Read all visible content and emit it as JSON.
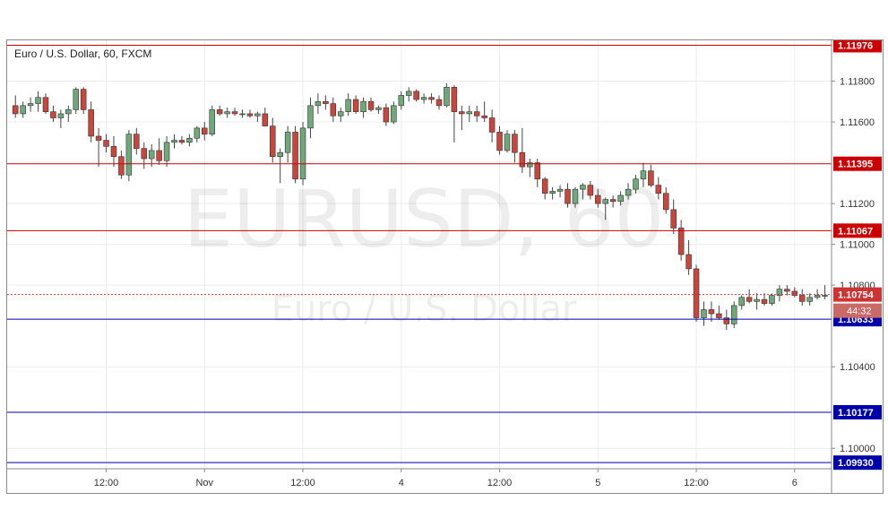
{
  "chart_data": {
    "type": "candlestick",
    "title": "Euro / U.S. Dollar, 60, FXCM",
    "watermark_symbol": "EURUSD, 60",
    "watermark_name": "Euro / U.S. Dollar",
    "ylim": [
      1.099,
      1.12
    ],
    "y_ticks": [
      "1.11800",
      "1.11600",
      "1.11200",
      "1.11000",
      "1.10800",
      "1.10400",
      "1.10000"
    ],
    "y_tick_values": [
      1.118,
      1.116,
      1.112,
      1.11,
      1.108,
      1.104,
      1.1
    ],
    "x_labels": [
      {
        "label": "12:00",
        "bar": 12
      },
      {
        "label": "Nov",
        "bar": 25
      },
      {
        "label": "12:00",
        "bar": 38
      },
      {
        "label": "4",
        "bar": 51
      },
      {
        "label": "12:00",
        "bar": 64
      },
      {
        "label": "5",
        "bar": 77
      },
      {
        "label": "12:00",
        "bar": 90
      },
      {
        "label": "6",
        "bar": 103
      }
    ],
    "levels": [
      {
        "value": 1.11976,
        "label": "1.11976",
        "color": "#cc0000"
      },
      {
        "value": 1.11395,
        "label": "1.11395",
        "color": "#cc0000"
      },
      {
        "value": 1.11067,
        "label": "1.11067",
        "color": "#cc0000"
      },
      {
        "value": 1.10633,
        "label": "1.10633",
        "color": "#0000aa"
      },
      {
        "value": 1.10177,
        "label": "1.10177",
        "color": "#0000aa"
      },
      {
        "value": 1.0993,
        "label": "1.09930",
        "color": "#0000aa"
      }
    ],
    "current_price": {
      "value": 1.10754,
      "label": "1.10754",
      "countdown": "44:32",
      "color": "#cc3333"
    },
    "colors": {
      "up": "#6fa87a",
      "down": "#c9463d",
      "wick": "#444444",
      "grid": "#ececec"
    },
    "candles": [
      [
        1.1168,
        1.1173,
        1.1162,
        1.1164
      ],
      [
        1.1164,
        1.117,
        1.1162,
        1.1168
      ],
      [
        1.1168,
        1.1172,
        1.1165,
        1.1169
      ],
      [
        1.1169,
        1.1175,
        1.1165,
        1.1172
      ],
      [
        1.1172,
        1.1174,
        1.1164,
        1.1165
      ],
      [
        1.1165,
        1.1168,
        1.116,
        1.1162
      ],
      [
        1.1162,
        1.1166,
        1.1157,
        1.1164
      ],
      [
        1.1164,
        1.1168,
        1.116,
        1.1166
      ],
      [
        1.1166,
        1.1177,
        1.1164,
        1.1176
      ],
      [
        1.1176,
        1.1177,
        1.1164,
        1.1166
      ],
      [
        1.1166,
        1.117,
        1.115,
        1.1153
      ],
      [
        1.1153,
        1.1157,
        1.1138,
        1.1151
      ],
      [
        1.1151,
        1.1154,
        1.1145,
        1.1148
      ],
      [
        1.1148,
        1.1153,
        1.1138,
        1.1143
      ],
      [
        1.1143,
        1.1146,
        1.1132,
        1.1134
      ],
      [
        1.1134,
        1.1156,
        1.1131,
        1.1154
      ],
      [
        1.1154,
        1.1157,
        1.1144,
        1.1147
      ],
      [
        1.1147,
        1.115,
        1.1137,
        1.1142
      ],
      [
        1.1142,
        1.1149,
        1.1138,
        1.1146
      ],
      [
        1.1146,
        1.1152,
        1.1139,
        1.1141
      ],
      [
        1.1141,
        1.1153,
        1.1138,
        1.115
      ],
      [
        1.115,
        1.1154,
        1.1147,
        1.1151
      ],
      [
        1.1151,
        1.1153,
        1.1149,
        1.115
      ],
      [
        1.115,
        1.1154,
        1.1148,
        1.1152
      ],
      [
        1.1152,
        1.1158,
        1.115,
        1.1157
      ],
      [
        1.1157,
        1.116,
        1.1151,
        1.1154
      ],
      [
        1.1154,
        1.1168,
        1.1153,
        1.1166
      ],
      [
        1.1166,
        1.1168,
        1.1163,
        1.1164
      ],
      [
        1.1164,
        1.1167,
        1.1162,
        1.1165
      ],
      [
        1.1165,
        1.1167,
        1.1163,
        1.1164
      ],
      [
        1.1164,
        1.1166,
        1.1162,
        1.1164
      ],
      [
        1.1164,
        1.1166,
        1.1162,
        1.1163
      ],
      [
        1.1163,
        1.1165,
        1.116,
        1.1164
      ],
      [
        1.1164,
        1.1167,
        1.1158,
        1.1158
      ],
      [
        1.1158,
        1.1162,
        1.114,
        1.1143
      ],
      [
        1.1143,
        1.1147,
        1.113,
        1.1145
      ],
      [
        1.1145,
        1.1158,
        1.114,
        1.1155
      ],
      [
        1.1155,
        1.1158,
        1.113,
        1.1132
      ],
      [
        1.1132,
        1.116,
        1.1129,
        1.1157
      ],
      [
        1.1157,
        1.1172,
        1.1152,
        1.1168
      ],
      [
        1.1168,
        1.1174,
        1.1164,
        1.117
      ],
      [
        1.117,
        1.1173,
        1.1166,
        1.1169
      ],
      [
        1.1169,
        1.1172,
        1.116,
        1.1163
      ],
      [
        1.1163,
        1.1167,
        1.116,
        1.1165
      ],
      [
        1.1165,
        1.1174,
        1.1163,
        1.1171
      ],
      [
        1.1171,
        1.1173,
        1.1164,
        1.1165
      ],
      [
        1.1165,
        1.1172,
        1.1162,
        1.117
      ],
      [
        1.117,
        1.1172,
        1.1165,
        1.1166
      ],
      [
        1.1166,
        1.1168,
        1.1164,
        1.1167
      ],
      [
        1.1167,
        1.1169,
        1.1158,
        1.116
      ],
      [
        1.116,
        1.117,
        1.1159,
        1.1168
      ],
      [
        1.1168,
        1.1175,
        1.1166,
        1.1173
      ],
      [
        1.1173,
        1.1177,
        1.117,
        1.1175
      ],
      [
        1.1175,
        1.1176,
        1.117,
        1.1171
      ],
      [
        1.1171,
        1.1174,
        1.1169,
        1.1172
      ],
      [
        1.1172,
        1.1174,
        1.1169,
        1.1171
      ],
      [
        1.1171,
        1.1173,
        1.1166,
        1.1168
      ],
      [
        1.1168,
        1.1179,
        1.1167,
        1.1177
      ],
      [
        1.1177,
        1.1178,
        1.115,
        1.1165
      ],
      [
        1.1165,
        1.1168,
        1.1156,
        1.1164
      ],
      [
        1.1164,
        1.1168,
        1.116,
        1.1165
      ],
      [
        1.1165,
        1.1168,
        1.116,
        1.1163
      ],
      [
        1.1163,
        1.117,
        1.116,
        1.1162
      ],
      [
        1.1162,
        1.1166,
        1.115,
        1.1155
      ],
      [
        1.1155,
        1.1158,
        1.1144,
        1.1146
      ],
      [
        1.1146,
        1.1156,
        1.1145,
        1.1154
      ],
      [
        1.1154,
        1.1156,
        1.114,
        1.1145
      ],
      [
        1.1145,
        1.1157,
        1.1135,
        1.1138
      ],
      [
        1.1138,
        1.1142,
        1.1133,
        1.114
      ],
      [
        1.114,
        1.1142,
        1.1128,
        1.1132
      ],
      [
        1.1132,
        1.1133,
        1.1122,
        1.1125
      ],
      [
        1.1125,
        1.1128,
        1.1122,
        1.1126
      ],
      [
        1.1126,
        1.1129,
        1.1123,
        1.1127
      ],
      [
        1.1127,
        1.113,
        1.1118,
        1.112
      ],
      [
        1.112,
        1.1128,
        1.1118,
        1.1127
      ],
      [
        1.1127,
        1.113,
        1.1122,
        1.1129
      ],
      [
        1.1129,
        1.1131,
        1.1122,
        1.1124
      ],
      [
        1.1124,
        1.1127,
        1.1118,
        1.112
      ],
      [
        1.112,
        1.1123,
        1.1112,
        1.1122
      ],
      [
        1.1122,
        1.1124,
        1.1118,
        1.1121
      ],
      [
        1.1121,
        1.1126,
        1.1119,
        1.1124
      ],
      [
        1.1124,
        1.113,
        1.1122,
        1.1127
      ],
      [
        1.1127,
        1.1134,
        1.1125,
        1.1132
      ],
      [
        1.1132,
        1.114,
        1.1128,
        1.1136
      ],
      [
        1.1136,
        1.1139,
        1.1128,
        1.1129
      ],
      [
        1.1129,
        1.1133,
        1.1122,
        1.1125
      ],
      [
        1.1125,
        1.1128,
        1.1115,
        1.1117
      ],
      [
        1.1117,
        1.1122,
        1.1105,
        1.1108
      ],
      [
        1.1108,
        1.1112,
        1.1092,
        1.1095
      ],
      [
        1.1095,
        1.1102,
        1.1085,
        1.1088
      ],
      [
        1.1088,
        1.109,
        1.1062,
        1.1064
      ],
      [
        1.1064,
        1.1072,
        1.106,
        1.1068
      ],
      [
        1.1068,
        1.1072,
        1.1062,
        1.1066
      ],
      [
        1.1066,
        1.107,
        1.1063,
        1.1064
      ],
      [
        1.1064,
        1.1068,
        1.1058,
        1.1061
      ],
      [
        1.1061,
        1.1072,
        1.1059,
        1.107
      ],
      [
        1.107,
        1.1075,
        1.1068,
        1.1074
      ],
      [
        1.1074,
        1.1078,
        1.1071,
        1.1072
      ],
      [
        1.1072,
        1.1076,
        1.1068,
        1.1073
      ],
      [
        1.1073,
        1.1076,
        1.107,
        1.1071
      ],
      [
        1.1071,
        1.1076,
        1.107,
        1.1075
      ],
      [
        1.1075,
        1.108,
        1.1072,
        1.1078
      ],
      [
        1.1078,
        1.108,
        1.1075,
        1.1077
      ],
      [
        1.1077,
        1.1079,
        1.1074,
        1.1075
      ],
      [
        1.1075,
        1.1078,
        1.107,
        1.1072
      ],
      [
        1.1072,
        1.1076,
        1.107,
        1.1074
      ],
      [
        1.1074,
        1.1078,
        1.1073,
        1.1075
      ],
      [
        1.1075,
        1.108,
        1.1073,
        1.1075
      ]
    ]
  }
}
